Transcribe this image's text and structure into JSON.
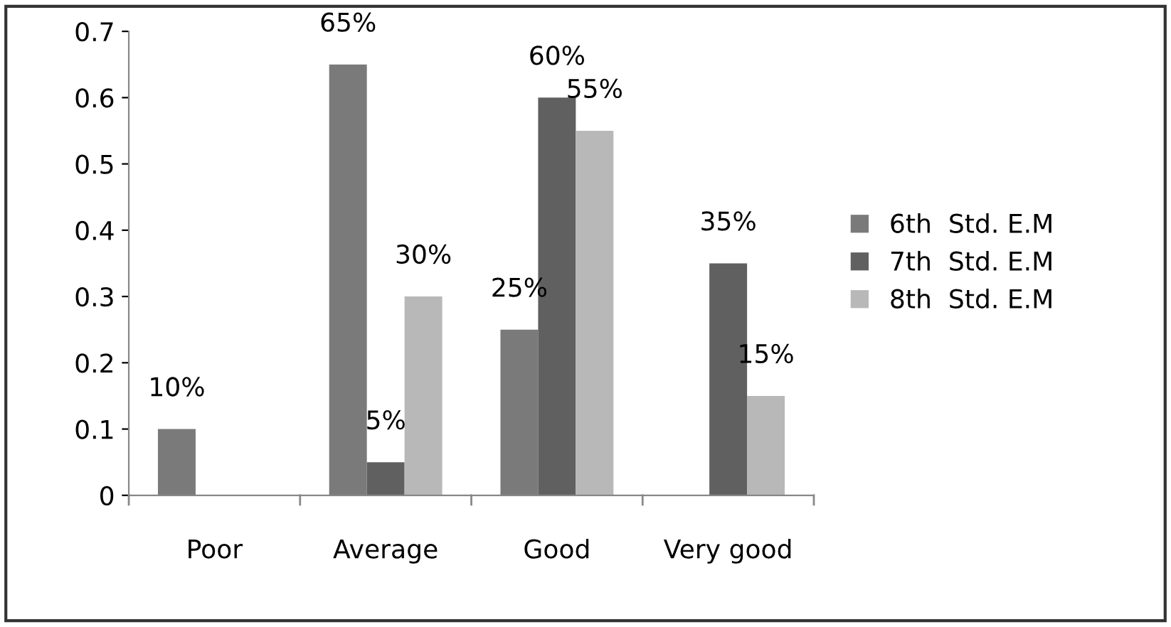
{
  "chart_data": {
    "type": "bar",
    "categories": [
      "Poor",
      "Average",
      "Good",
      "Very good"
    ],
    "series": [
      {
        "name": "6th  Std. E.M",
        "color": "#7a7a7a",
        "values": [
          0.1,
          0.65,
          0.25,
          0
        ],
        "value_labels": [
          "10%",
          "65%",
          "25%",
          null
        ]
      },
      {
        "name": "7th  Std. E.M",
        "color": "#606060",
        "values": [
          0,
          0.05,
          0.6,
          0.35
        ],
        "value_labels": [
          null,
          "5%",
          "60%",
          "35%"
        ]
      },
      {
        "name": "8th  Std. E.M",
        "color": "#b8b8b8",
        "values": [
          0,
          0.3,
          0.55,
          0.15
        ],
        "value_labels": [
          null,
          "30%",
          "55%",
          "15%"
        ]
      }
    ],
    "ylim": [
      0,
      0.7
    ],
    "yticks": [
      0,
      0.1,
      0.2,
      0.3,
      0.4,
      0.5,
      0.6,
      0.7
    ],
    "grid": false,
    "legend": "right"
  }
}
